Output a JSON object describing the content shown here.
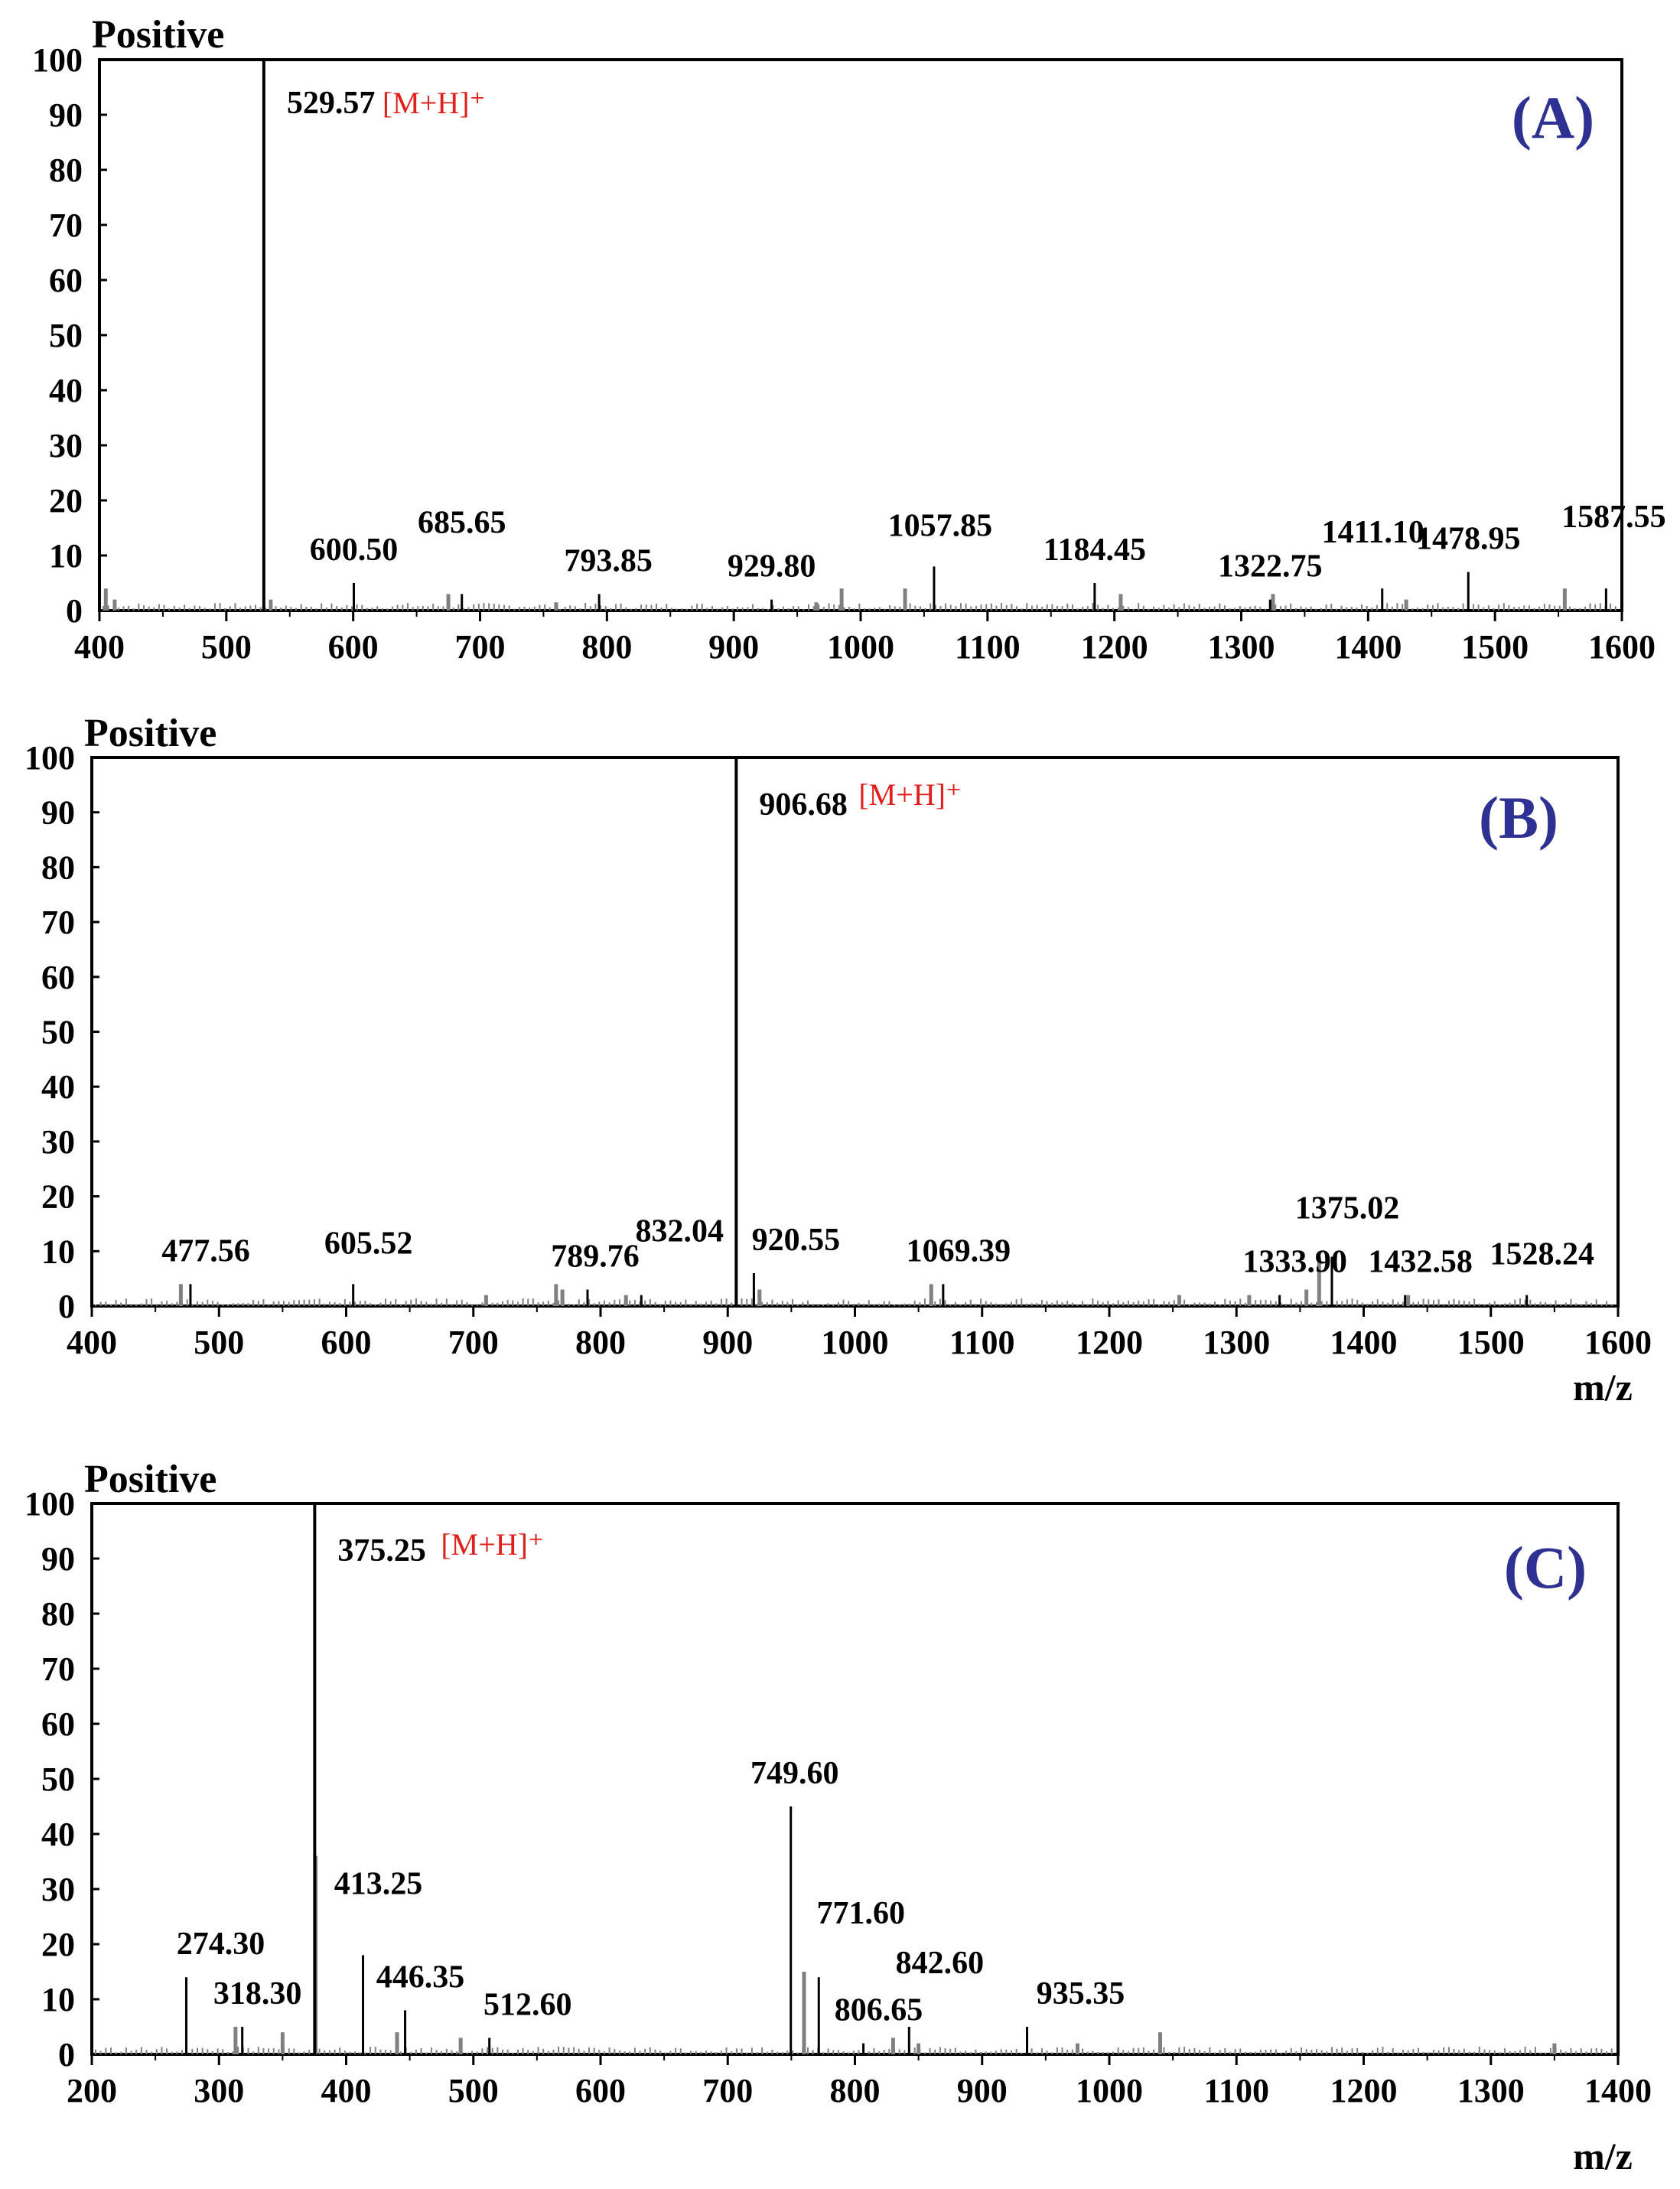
{
  "figure": {
    "colors": {
      "axis": "#000000",
      "peak": "#000000",
      "minor_peak": "#808080",
      "ion_label": "#e0201c",
      "panel_label": "#2e3192"
    }
  },
  "chart_data": [
    {
      "type": "bar",
      "panel_label": "(A)",
      "mode_label": "Positive",
      "xlabel": "",
      "ylabel": "",
      "xlim": [
        400,
        1600
      ],
      "ylim": [
        0,
        100
      ],
      "x_ticks": [
        "400",
        "500",
        "600",
        "700",
        "800",
        "900",
        "1000",
        "1100",
        "1200",
        "1300",
        "1400",
        "1500",
        "1600"
      ],
      "y_ticks": [
        "0",
        "10",
        "20",
        "30",
        "40",
        "50",
        "60",
        "70",
        "80",
        "90",
        "100"
      ],
      "ion_annotation": "[M+H]⁺",
      "labeled_peaks": [
        {
          "label": "529.57",
          "x": 529.57,
          "y": 100,
          "base": true
        },
        {
          "label": "600.50",
          "x": 600.5,
          "y": 5
        },
        {
          "label": "685.65",
          "x": 685.65,
          "y": 3
        },
        {
          "label": "793.85",
          "x": 793.85,
          "y": 3
        },
        {
          "label": "929.80",
          "x": 929.8,
          "y": 2
        },
        {
          "label": "1057.85",
          "x": 1057.85,
          "y": 8
        },
        {
          "label": "1184.45",
          "x": 1184.45,
          "y": 5
        },
        {
          "label": "1322.75",
          "x": 1322.75,
          "y": 2
        },
        {
          "label": "1411.10",
          "x": 1411.1,
          "y": 4
        },
        {
          "label": "1478.95",
          "x": 1478.95,
          "y": 7
        },
        {
          "label": "1587.55",
          "x": 1587.55,
          "y": 4
        }
      ],
      "minor_peaks": [
        {
          "x": 405,
          "y": 4
        },
        {
          "x": 412,
          "y": 2
        },
        {
          "x": 535,
          "y": 2
        },
        {
          "x": 675,
          "y": 3
        },
        {
          "x": 760,
          "y": 1.5
        },
        {
          "x": 965,
          "y": 1.5
        },
        {
          "x": 985,
          "y": 4
        },
        {
          "x": 1035,
          "y": 4
        },
        {
          "x": 1205,
          "y": 3
        },
        {
          "x": 1325,
          "y": 3
        },
        {
          "x": 1430,
          "y": 2
        },
        {
          "x": 1555,
          "y": 4
        }
      ]
    },
    {
      "type": "bar",
      "panel_label": "(B)",
      "mode_label": "Positive",
      "xlabel": "m/z",
      "ylabel": "",
      "xlim": [
        400,
        1600
      ],
      "ylim": [
        0,
        100
      ],
      "x_ticks": [
        "400",
        "500",
        "600",
        "700",
        "800",
        "900",
        "1000",
        "1100",
        "1200",
        "1300",
        "1400",
        "1500",
        "1600"
      ],
      "y_ticks": [
        "0",
        "10",
        "20",
        "30",
        "40",
        "50",
        "60",
        "70",
        "80",
        "90",
        "100"
      ],
      "ion_annotation": "[M+H]⁺",
      "labeled_peaks": [
        {
          "label": "906.68",
          "x": 906.68,
          "y": 100,
          "base": true
        },
        {
          "label": "477.56",
          "x": 477.56,
          "y": 4
        },
        {
          "label": "605.52",
          "x": 605.52,
          "y": 4
        },
        {
          "label": "789.76",
          "x": 789.76,
          "y": 3
        },
        {
          "label": "832.04",
          "x": 832.04,
          "y": 2
        },
        {
          "label": "920.55",
          "x": 920.55,
          "y": 6
        },
        {
          "label": "1069.39",
          "x": 1069.39,
          "y": 4
        },
        {
          "label": "1333.90",
          "x": 1333.9,
          "y": 2
        },
        {
          "label": "1375.02",
          "x": 1375.02,
          "y": 9
        },
        {
          "label": "1432.58",
          "x": 1432.58,
          "y": 2
        },
        {
          "label": "1528.24",
          "x": 1528.24,
          "y": 2
        }
      ],
      "minor_peaks": [
        {
          "x": 470,
          "y": 4
        },
        {
          "x": 710,
          "y": 2
        },
        {
          "x": 765,
          "y": 4
        },
        {
          "x": 770,
          "y": 3
        },
        {
          "x": 820,
          "y": 2
        },
        {
          "x": 925,
          "y": 3
        },
        {
          "x": 1060,
          "y": 4
        },
        {
          "x": 1255,
          "y": 2
        },
        {
          "x": 1310,
          "y": 2
        },
        {
          "x": 1355,
          "y": 3
        },
        {
          "x": 1365,
          "y": 9
        },
        {
          "x": 1435,
          "y": 2
        }
      ]
    },
    {
      "type": "bar",
      "panel_label": "(C)",
      "mode_label": "Positive",
      "xlabel": "m/z",
      "ylabel": "",
      "xlim": [
        200,
        1400
      ],
      "ylim": [
        0,
        100
      ],
      "x_ticks": [
        "200",
        "300",
        "400",
        "500",
        "600",
        "700",
        "800",
        "900",
        "1000",
        "1100",
        "1200",
        "1300",
        "1400"
      ],
      "y_ticks": [
        "0",
        "10",
        "20",
        "30",
        "40",
        "50",
        "60",
        "70",
        "80",
        "90",
        "100"
      ],
      "ion_annotation": "[M+H]⁺",
      "labeled_peaks": [
        {
          "label": "375.25",
          "x": 375.25,
          "y": 100,
          "base": true
        },
        {
          "label": "274.30",
          "x": 274.3,
          "y": 14
        },
        {
          "label": "318.30",
          "x": 318.3,
          "y": 5
        },
        {
          "label": "413.25",
          "x": 413.25,
          "y": 18
        },
        {
          "label": "446.35",
          "x": 446.35,
          "y": 8
        },
        {
          "label": "512.60",
          "x": 512.6,
          "y": 3
        },
        {
          "label": "749.60",
          "x": 749.6,
          "y": 45
        },
        {
          "label": "771.60",
          "x": 771.6,
          "y": 14
        },
        {
          "label": "806.65",
          "x": 806.65,
          "y": 2
        },
        {
          "label": "842.60",
          "x": 842.6,
          "y": 5
        },
        {
          "label": "935.35",
          "x": 935.35,
          "y": 5
        }
      ],
      "minor_peaks": [
        {
          "x": 376,
          "y": 36
        },
        {
          "x": 313,
          "y": 5
        },
        {
          "x": 350,
          "y": 4
        },
        {
          "x": 440,
          "y": 4
        },
        {
          "x": 490,
          "y": 3
        },
        {
          "x": 760,
          "y": 15
        },
        {
          "x": 830,
          "y": 3
        },
        {
          "x": 850,
          "y": 2
        },
        {
          "x": 975,
          "y": 2
        },
        {
          "x": 1040,
          "y": 4
        },
        {
          "x": 1350,
          "y": 2
        }
      ]
    }
  ]
}
